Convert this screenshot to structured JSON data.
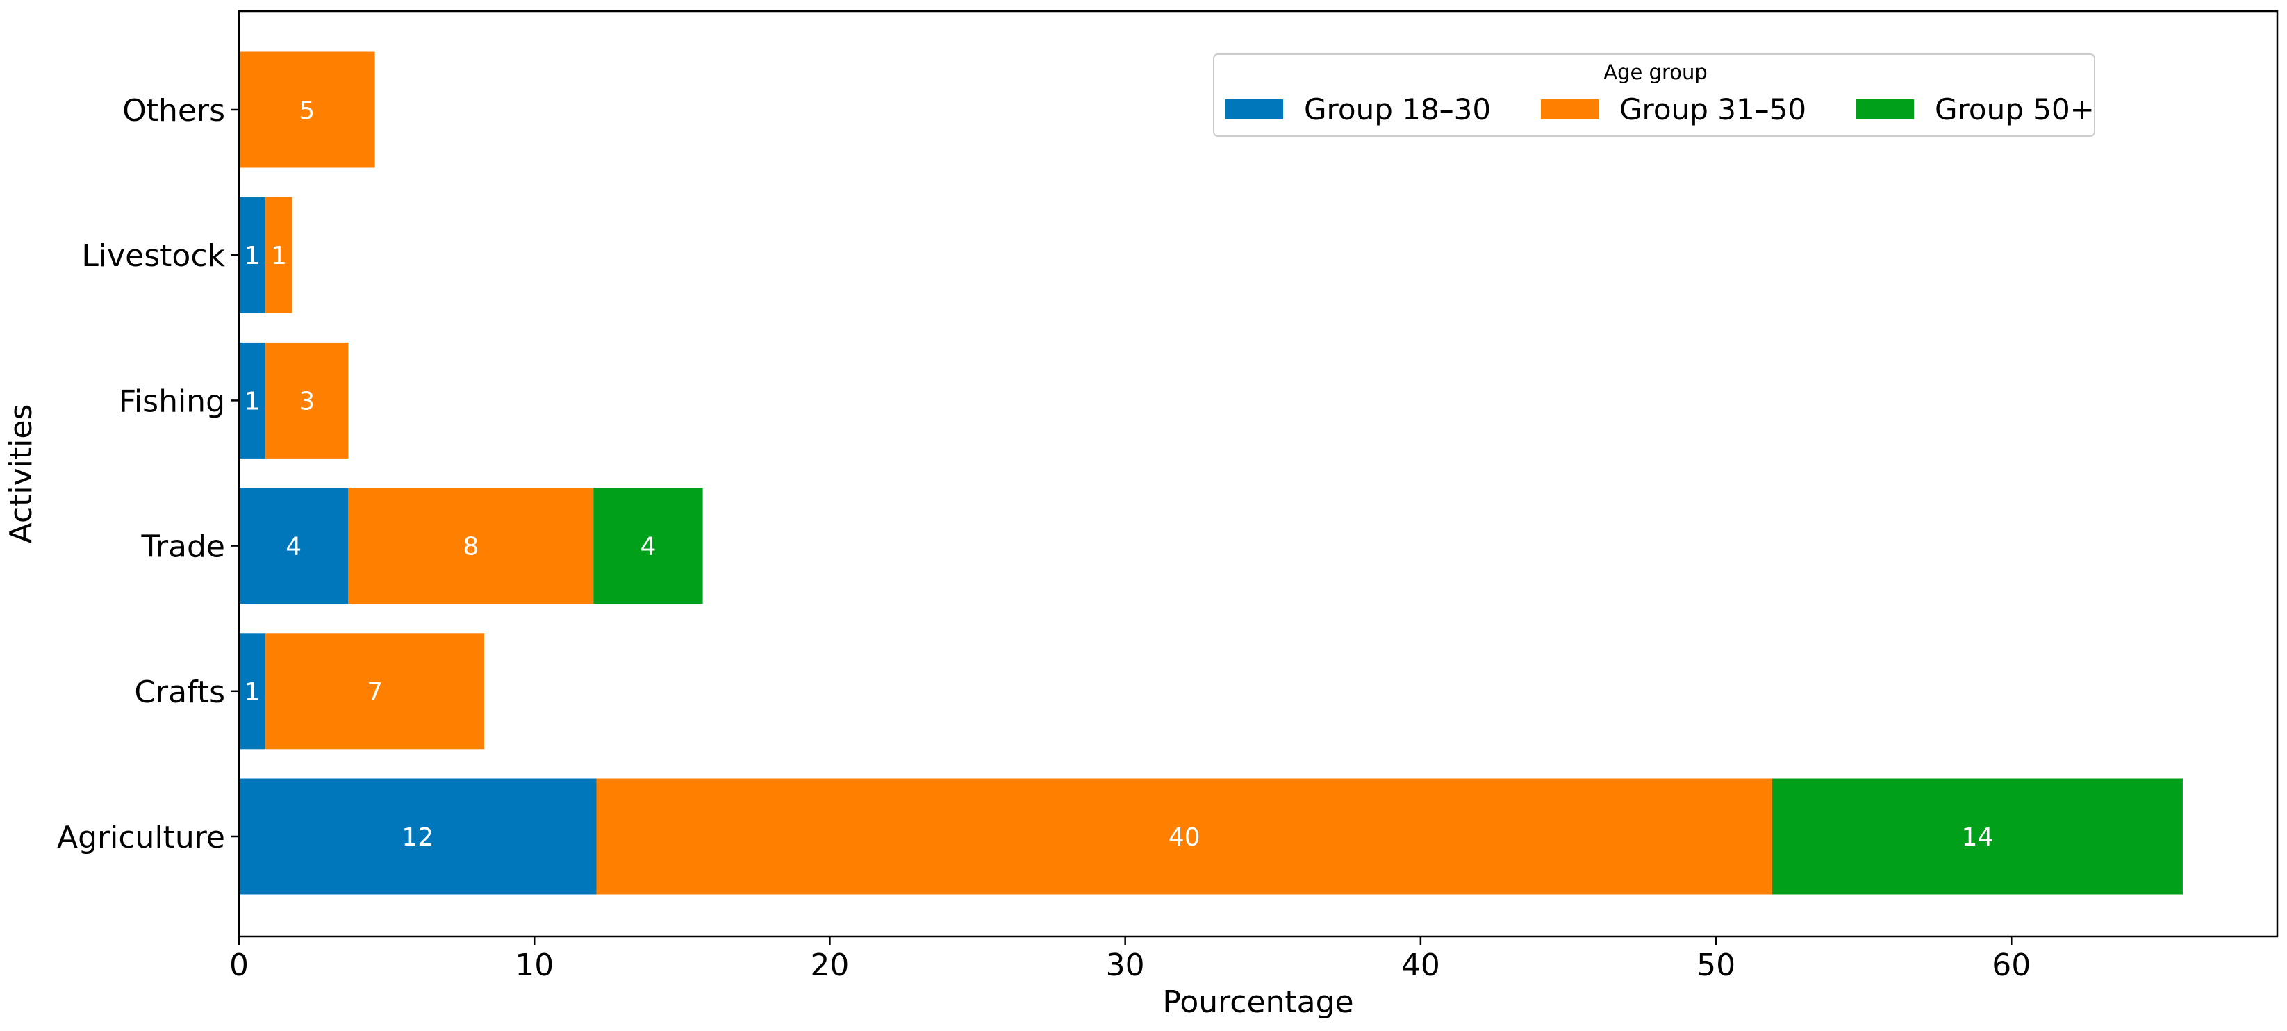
{
  "chart_data": {
    "type": "bar",
    "orientation": "horizontal",
    "stacked": true,
    "categories": [
      "Agriculture",
      "Crafts",
      "Trade ",
      "Fishing",
      "Livestock",
      "Others"
    ],
    "series": [
      {
        "name": "Group 18–30",
        "color": "#0077bb",
        "values": [
          12.1,
          0.9,
          3.7,
          0.9,
          0.9,
          0
        ],
        "labels": [
          "12",
          "1",
          "4",
          "1",
          "1",
          ""
        ]
      },
      {
        "name": "Group 31–50",
        "color": "#ff7f00",
        "values": [
          39.8,
          7.4,
          8.3,
          2.8,
          0.9,
          4.6
        ],
        "labels": [
          "40",
          "7",
          "8",
          "3",
          "1",
          "5"
        ]
      },
      {
        "name": "Group 50+",
        "color": "#00a01a",
        "values": [
          13.9,
          0,
          3.7,
          0,
          0,
          0
        ],
        "labels": [
          "14",
          "",
          "4",
          "",
          "",
          ""
        ]
      }
    ],
    "xlabel": "Pourcentage",
    "ylabel": "Activities",
    "xlim": [
      0,
      69
    ],
    "xticks": [
      0,
      10,
      20,
      30,
      40,
      50,
      60
    ],
    "grid": false,
    "legend": {
      "title": "Age group",
      "placement": "top-right",
      "columns": 3
    }
  }
}
